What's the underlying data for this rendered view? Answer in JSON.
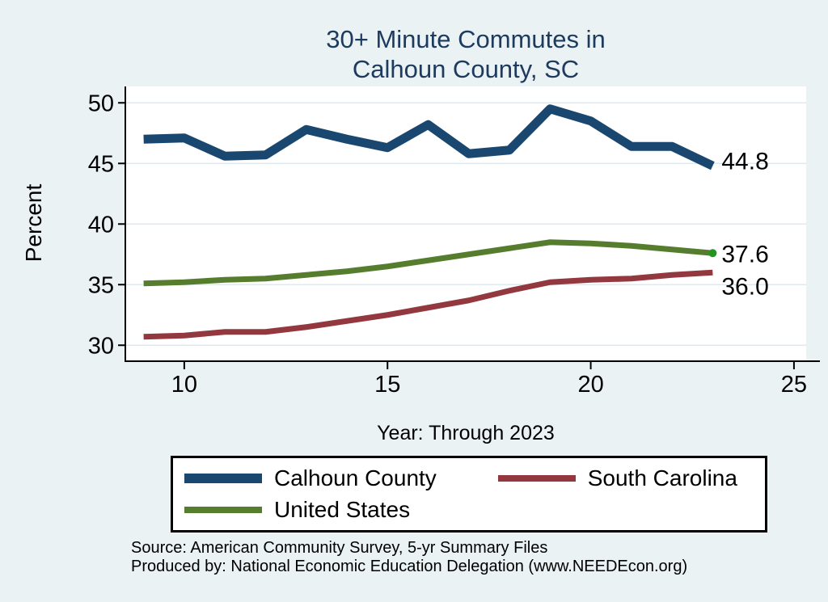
{
  "title": {
    "line1": "30+ Minute Commutes in",
    "line2": "Calhoun County, SC"
  },
  "axes": {
    "y_label": "Percent",
    "x_label": "Year: Through 2023"
  },
  "colors": {
    "background": "#eaf2f3",
    "plot_background": "#ffffff",
    "gridline": "#dfeaf0",
    "axis": "#000000",
    "title_text": "#1d3a5f",
    "navy": "#1a476f",
    "maroon": "#94383f",
    "olive_green": "#567d2e",
    "end_dot_green": "#21961f"
  },
  "chart_data": {
    "type": "line",
    "title": "30+ Minute Commutes in Calhoun County, SC",
    "xlabel": "Year: Through 2023",
    "ylabel": "Percent",
    "grid": true,
    "legend_position": "bottom",
    "x": [
      9,
      10,
      11,
      12,
      13,
      14,
      15,
      16,
      17,
      18,
      19,
      20,
      21,
      22,
      23
    ],
    "x_axis": {
      "ticks": [
        10,
        15,
        20,
        25
      ],
      "tick_labels": [
        "10",
        "15",
        "20",
        "25"
      ],
      "range": [
        8.55,
        25.3
      ]
    },
    "y_axis": {
      "ticks": [
        30,
        35,
        40,
        45,
        50
      ],
      "tick_labels": [
        "30",
        "35",
        "40",
        "45",
        "50"
      ],
      "range": [
        28.75,
        51.35
      ]
    },
    "series": [
      {
        "name": "Calhoun County",
        "color": "#1a476f",
        "line_width": 11,
        "values": [
          47.0,
          47.1,
          45.6,
          45.7,
          47.8,
          47.0,
          46.3,
          48.2,
          45.8,
          46.1,
          49.5,
          48.5,
          46.4,
          46.4,
          44.8
        ],
        "end_label": "44.8",
        "end_label_dy": -7
      },
      {
        "name": "South Carolina",
        "color": "#94383f",
        "line_width": 7,
        "values": [
          30.7,
          30.8,
          31.1,
          31.1,
          31.5,
          32.0,
          32.5,
          33.1,
          33.7,
          34.5,
          35.2,
          35.4,
          35.5,
          35.8,
          36.0
        ],
        "end_label": "36.0",
        "end_label_dy": 16
      },
      {
        "name": "United States",
        "color": "#567d2e",
        "line_width": 7,
        "values": [
          35.1,
          35.2,
          35.4,
          35.5,
          35.8,
          36.1,
          36.5,
          37.0,
          37.5,
          38.0,
          38.5,
          38.4,
          38.2,
          37.9,
          37.6
        ],
        "end_label": "37.6",
        "end_label_dy": 0,
        "end_dot_color": "#21961f"
      }
    ]
  },
  "legend": {
    "items": [
      {
        "label": "Calhoun County",
        "color": "#1a476f",
        "thickness": 12
      },
      {
        "label": "South Carolina",
        "color": "#94383f",
        "thickness": 8
      },
      {
        "label": "United States",
        "color": "#567d2e",
        "thickness": 8
      }
    ]
  },
  "source": {
    "line1": "Source: American Community Survey, 5-yr Summary Files",
    "line2": "Produced by: National Economic Education Delegation (www.NEEDEcon.org)"
  }
}
